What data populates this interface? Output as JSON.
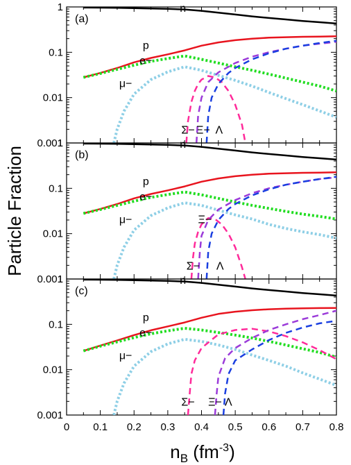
{
  "chart_data": {
    "type": "line",
    "layout": "three vertically stacked panels sharing the x axis",
    "ylabel": "Particle Fraction",
    "xlabel_main": "n",
    "xlabel_sub": "B",
    "xlabel_unit_open": " (fm",
    "xlabel_unit_exp": "-3",
    "xlabel_unit_close": ")",
    "xlim": [
      0,
      0.8
    ],
    "ylim": [
      0.001,
      1
    ],
    "yscale": "log",
    "x_ticks": [
      {
        "v": 0,
        "label": "0"
      },
      {
        "v": 0.1,
        "label": "0.1"
      },
      {
        "v": 0.2,
        "label": "0.2"
      },
      {
        "v": 0.3,
        "label": "0.3"
      },
      {
        "v": 0.4,
        "label": "0.4"
      },
      {
        "v": 0.5,
        "label": "0.5"
      },
      {
        "v": 0.6,
        "label": "0.6"
      },
      {
        "v": 0.7,
        "label": "0.7"
      },
      {
        "v": 0.8,
        "label": "0.8"
      }
    ],
    "y_ticks": [
      {
        "v": 1,
        "label": "1"
      },
      {
        "v": 0.1,
        "label": "0.1"
      },
      {
        "v": 0.01,
        "label": "0.01"
      },
      {
        "v": 0.001,
        "label": "0.001"
      }
    ],
    "styles": {
      "n": {
        "color": "#000000",
        "dash": "solid",
        "width": 2.5
      },
      "p": {
        "color": "#e8141e",
        "dash": "solid",
        "width": 2.5
      },
      "e": {
        "color": "#22dd22",
        "dash": "dotted",
        "width": 4
      },
      "mu": {
        "color": "#8ecfe6",
        "dash": "dotted",
        "width": 4
      },
      "Sigma": {
        "color": "#ff2a9a",
        "dash": "dashed",
        "width": 2.5
      },
      "Xi": {
        "color": "#9b3bd9",
        "dash": "dashed",
        "width": 2.5
      },
      "Lambda": {
        "color": "#1a3fe0",
        "dash": "dashed",
        "width": 2.5
      }
    },
    "panels": [
      {
        "label": "(a)",
        "annotations": [
          {
            "text": "n",
            "x": 0.345,
            "y": 0.78
          },
          {
            "text": "p",
            "x": 0.235,
            "y": 0.118
          },
          {
            "text": "e−",
            "x": 0.235,
            "y": 0.055
          },
          {
            "text": "μ−",
            "x": 0.175,
            "y": 0.017
          },
          {
            "text": "Σ−",
            "x": 0.36,
            "y": 0.0016
          },
          {
            "text": "Ξ−",
            "x": 0.405,
            "y": 0.0016
          },
          {
            "text": "Λ",
            "x": 0.452,
            "y": 0.0016
          }
        ],
        "series": [
          {
            "key": "n",
            "x": [
              0.05,
              0.1,
              0.15,
              0.2,
              0.25,
              0.3,
              0.35,
              0.4,
              0.45,
              0.5,
              0.55,
              0.6,
              0.65,
              0.7,
              0.75,
              0.8
            ],
            "y": [
              0.97,
              0.965,
              0.955,
              0.94,
              0.925,
              0.905,
              0.88,
              0.82,
              0.75,
              0.68,
              0.62,
              0.57,
              0.53,
              0.49,
              0.46,
              0.43
            ]
          },
          {
            "key": "p",
            "x": [
              0.05,
              0.1,
              0.15,
              0.2,
              0.25,
              0.3,
              0.35,
              0.4,
              0.45,
              0.5,
              0.55,
              0.6,
              0.65,
              0.7,
              0.75,
              0.8
            ],
            "y": [
              0.028,
              0.035,
              0.045,
              0.06,
              0.075,
              0.09,
              0.11,
              0.14,
              0.165,
              0.185,
              0.2,
              0.21,
              0.215,
              0.22,
              0.222,
              0.225
            ]
          },
          {
            "key": "e",
            "x": [
              0.05,
              0.1,
              0.15,
              0.2,
              0.25,
              0.3,
              0.35,
              0.4,
              0.45,
              0.5,
              0.55,
              0.6,
              0.65,
              0.7,
              0.75,
              0.8
            ],
            "y": [
              0.028,
              0.034,
              0.042,
              0.052,
              0.063,
              0.073,
              0.083,
              0.07,
              0.058,
              0.048,
              0.04,
              0.033,
              0.027,
              0.022,
              0.018,
              0.014
            ]
          },
          {
            "key": "mu",
            "x": [
              0.14,
              0.15,
              0.17,
              0.2,
              0.25,
              0.3,
              0.35,
              0.4,
              0.45,
              0.5,
              0.55,
              0.6,
              0.65,
              0.7,
              0.75,
              0.8
            ],
            "y": [
              0.001,
              0.002,
              0.005,
              0.012,
              0.025,
              0.037,
              0.048,
              0.04,
              0.031,
              0.024,
              0.018,
              0.013,
              0.0095,
              0.007,
              0.0051,
              0.0037
            ]
          },
          {
            "key": "Sigma",
            "x": [
              0.355,
              0.36,
              0.37,
              0.38,
              0.39,
              0.4,
              0.42,
              0.44,
              0.46,
              0.48,
              0.5,
              0.52,
              0.53
            ],
            "y": [
              0.001,
              0.003,
              0.008,
              0.014,
              0.02,
              0.025,
              0.03,
              0.028,
              0.022,
              0.014,
              0.007,
              0.0025,
              0.001
            ]
          },
          {
            "key": "Xi",
            "x": [
              0.385,
              0.39,
              0.4,
              0.42,
              0.45,
              0.5,
              0.55,
              0.6,
              0.65,
              0.7,
              0.75,
              0.8
            ],
            "y": [
              0.001,
              0.004,
              0.01,
              0.022,
              0.036,
              0.058,
              0.08,
              0.1,
              0.12,
              0.14,
              0.155,
              0.17
            ]
          },
          {
            "key": "Lambda",
            "x": [
              0.415,
              0.42,
              0.43,
              0.45,
              0.48,
              0.5,
              0.55,
              0.6,
              0.65,
              0.7,
              0.75,
              0.8
            ],
            "y": [
              0.001,
              0.004,
              0.01,
              0.02,
              0.035,
              0.045,
              0.07,
              0.095,
              0.12,
              0.14,
              0.16,
              0.18
            ]
          }
        ]
      },
      {
        "label": "(b)",
        "annotations": [
          {
            "text": "n",
            "x": 0.345,
            "y": 0.78
          },
          {
            "text": "p",
            "x": 0.235,
            "y": 0.118
          },
          {
            "text": "e−",
            "x": 0.235,
            "y": 0.055
          },
          {
            "text": "μ−",
            "x": 0.175,
            "y": 0.017
          },
          {
            "text": "Ξ−",
            "x": 0.41,
            "y": 0.017
          },
          {
            "text": "Σ−",
            "x": 0.375,
            "y": 0.0016
          },
          {
            "text": "Λ",
            "x": 0.455,
            "y": 0.0016
          }
        ],
        "series": [
          {
            "key": "n",
            "x": [
              0.05,
              0.1,
              0.15,
              0.2,
              0.25,
              0.3,
              0.35,
              0.4,
              0.45,
              0.5,
              0.55,
              0.6,
              0.65,
              0.7,
              0.75,
              0.8
            ],
            "y": [
              0.97,
              0.965,
              0.955,
              0.94,
              0.925,
              0.905,
              0.88,
              0.82,
              0.75,
              0.68,
              0.62,
              0.57,
              0.53,
              0.49,
              0.46,
              0.43
            ]
          },
          {
            "key": "p",
            "x": [
              0.05,
              0.1,
              0.15,
              0.2,
              0.25,
              0.3,
              0.35,
              0.4,
              0.45,
              0.5,
              0.55,
              0.6,
              0.65,
              0.7,
              0.75,
              0.8
            ],
            "y": [
              0.028,
              0.035,
              0.045,
              0.06,
              0.075,
              0.09,
              0.11,
              0.14,
              0.165,
              0.185,
              0.2,
              0.21,
              0.215,
              0.22,
              0.222,
              0.225
            ]
          },
          {
            "key": "e",
            "x": [
              0.05,
              0.1,
              0.15,
              0.2,
              0.25,
              0.3,
              0.35,
              0.4,
              0.45,
              0.5,
              0.55,
              0.6,
              0.65,
              0.7,
              0.75,
              0.8
            ],
            "y": [
              0.028,
              0.034,
              0.042,
              0.052,
              0.063,
              0.073,
              0.083,
              0.072,
              0.06,
              0.05,
              0.042,
              0.036,
              0.031,
              0.027,
              0.024,
              0.021
            ]
          },
          {
            "key": "mu",
            "x": [
              0.14,
              0.15,
              0.17,
              0.2,
              0.25,
              0.3,
              0.35,
              0.4,
              0.45,
              0.5,
              0.55,
              0.6,
              0.65,
              0.7,
              0.75,
              0.8
            ],
            "y": [
              0.001,
              0.002,
              0.005,
              0.012,
              0.025,
              0.037,
              0.048,
              0.042,
              0.033,
              0.026,
              0.021,
              0.016,
              0.013,
              0.011,
              0.0095,
              0.008
            ]
          },
          {
            "key": "Sigma",
            "x": [
              0.37,
              0.375,
              0.38,
              0.39,
              0.4,
              0.42,
              0.44,
              0.46,
              0.48,
              0.5,
              0.52,
              0.53
            ],
            "y": [
              0.001,
              0.003,
              0.006,
              0.011,
              0.016,
              0.022,
              0.021,
              0.016,
              0.01,
              0.005,
              0.0018,
              0.001
            ]
          },
          {
            "key": "Xi",
            "x": [
              0.39,
              0.395,
              0.4,
              0.42,
              0.45,
              0.5,
              0.55,
              0.6,
              0.65,
              0.7,
              0.75,
              0.8
            ],
            "y": [
              0.001,
              0.004,
              0.009,
              0.02,
              0.034,
              0.055,
              0.078,
              0.1,
              0.12,
              0.14,
              0.16,
              0.175
            ]
          },
          {
            "key": "Lambda",
            "x": [
              0.415,
              0.42,
              0.43,
              0.45,
              0.48,
              0.5,
              0.55,
              0.6,
              0.65,
              0.7,
              0.75,
              0.8
            ],
            "y": [
              0.001,
              0.004,
              0.01,
              0.02,
              0.035,
              0.045,
              0.07,
              0.095,
              0.12,
              0.14,
              0.16,
              0.18
            ]
          }
        ]
      },
      {
        "label": "(c)",
        "annotations": [
          {
            "text": "n",
            "x": 0.345,
            "y": 0.78
          },
          {
            "text": "p",
            "x": 0.235,
            "y": 0.118
          },
          {
            "text": "e−",
            "x": 0.235,
            "y": 0.055
          },
          {
            "text": "μ−",
            "x": 0.175,
            "y": 0.017
          },
          {
            "text": "Σ−",
            "x": 0.36,
            "y": 0.0016
          },
          {
            "text": "Ξ−",
            "x": 0.44,
            "y": 0.0016
          },
          {
            "text": "Λ",
            "x": 0.48,
            "y": 0.0016
          }
        ],
        "series": [
          {
            "key": "n",
            "x": [
              0.05,
              0.1,
              0.15,
              0.2,
              0.25,
              0.3,
              0.35,
              0.4,
              0.45,
              0.5,
              0.55,
              0.6,
              0.65,
              0.7,
              0.75,
              0.8
            ],
            "y": [
              0.97,
              0.965,
              0.955,
              0.94,
              0.925,
              0.905,
              0.88,
              0.82,
              0.75,
              0.68,
              0.62,
              0.57,
              0.53,
              0.49,
              0.46,
              0.43
            ]
          },
          {
            "key": "p",
            "x": [
              0.05,
              0.1,
              0.15,
              0.2,
              0.25,
              0.3,
              0.35,
              0.4,
              0.45,
              0.5,
              0.55,
              0.6,
              0.65,
              0.7,
              0.75,
              0.8
            ],
            "y": [
              0.026,
              0.034,
              0.044,
              0.058,
              0.074,
              0.09,
              0.11,
              0.14,
              0.17,
              0.19,
              0.205,
              0.215,
              0.222,
              0.226,
              0.228,
              0.23
            ]
          },
          {
            "key": "e",
            "x": [
              0.05,
              0.1,
              0.15,
              0.2,
              0.25,
              0.3,
              0.35,
              0.4,
              0.45,
              0.5,
              0.55,
              0.6,
              0.65,
              0.7,
              0.75,
              0.8
            ],
            "y": [
              0.026,
              0.033,
              0.041,
              0.051,
              0.062,
              0.072,
              0.082,
              0.075,
              0.066,
              0.058,
              0.05,
              0.042,
              0.035,
              0.029,
              0.024,
              0.019
            ]
          },
          {
            "key": "mu",
            "x": [
              0.14,
              0.15,
              0.17,
              0.2,
              0.25,
              0.3,
              0.35,
              0.4,
              0.45,
              0.5,
              0.55,
              0.6,
              0.65,
              0.7,
              0.75,
              0.8
            ],
            "y": [
              0.001,
              0.002,
              0.005,
              0.012,
              0.025,
              0.037,
              0.047,
              0.042,
              0.035,
              0.028,
              0.021,
              0.016,
              0.012,
              0.0085,
              0.0062,
              0.0045
            ]
          },
          {
            "key": "Sigma",
            "x": [
              0.36,
              0.365,
              0.37,
              0.38,
              0.4,
              0.45,
              0.5,
              0.55,
              0.6,
              0.65,
              0.7,
              0.75,
              0.8
            ],
            "y": [
              0.001,
              0.003,
              0.008,
              0.016,
              0.03,
              0.06,
              0.075,
              0.08,
              0.07,
              0.055,
              0.04,
              0.027,
              0.017
            ]
          },
          {
            "key": "Xi",
            "x": [
              0.44,
              0.445,
              0.45,
              0.47,
              0.5,
              0.55,
              0.6,
              0.65,
              0.7,
              0.75,
              0.8
            ],
            "y": [
              0.001,
              0.003,
              0.007,
              0.018,
              0.03,
              0.05,
              0.075,
              0.1,
              0.13,
              0.16,
              0.2
            ]
          },
          {
            "key": "Lambda",
            "x": [
              0.465,
              0.47,
              0.48,
              0.5,
              0.55,
              0.6,
              0.65,
              0.7,
              0.75,
              0.8
            ],
            "y": [
              0.001,
              0.003,
              0.008,
              0.016,
              0.028,
              0.045,
              0.065,
              0.085,
              0.105,
              0.12
            ]
          }
        ]
      }
    ]
  }
}
